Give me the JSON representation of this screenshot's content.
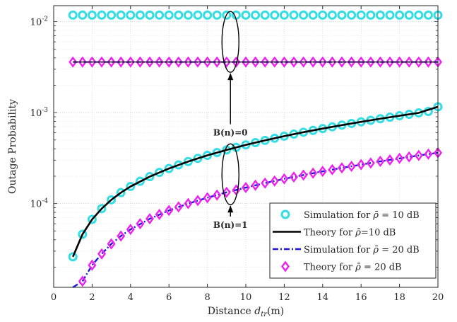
{
  "chart_data": {
    "type": "line",
    "xlabel": "Distance d_tr(m)",
    "xlabel_main": "Distance ",
    "xlabel_var": "d",
    "xlabel_sub": "tr",
    "xlabel_unit": "(m)",
    "ylabel": "Outage Probability",
    "xlim": [
      0,
      20
    ],
    "ylim": [
      1.2e-05,
      0.015
    ],
    "yscale": "log",
    "grid": true,
    "x_ticks": [
      0,
      2,
      4,
      6,
      8,
      10,
      12,
      14,
      16,
      18,
      20
    ],
    "y_ticks": [
      {
        "base": "10",
        "exp": "-4",
        "value": 0.0001
      },
      {
        "base": "10",
        "exp": "-3",
        "value": 0.001
      },
      {
        "base": "10",
        "exp": "-2",
        "value": 0.01
      }
    ],
    "legend_position": "bottom-right",
    "series": [
      {
        "name": "Simulation for ρ̄ = 10 dB",
        "label_main": "Simulation for ",
        "label_suffix": " = 10 dB",
        "style": "marker-circle",
        "color": "#33dde6",
        "x": [
          1,
          1.5,
          2,
          2.5,
          3,
          3.5,
          4,
          4.5,
          5,
          5.5,
          6,
          6.5,
          7,
          7.5,
          8,
          8.5,
          9,
          9.5,
          10,
          10.5,
          11,
          11.5,
          12,
          12.5,
          13,
          13.5,
          14,
          14.5,
          15,
          15.5,
          16,
          16.5,
          17,
          17.5,
          18,
          18.5,
          19,
          19.5,
          20
        ],
        "y": [
          2.6e-05,
          4.6e-05,
          6.7e-05,
          8.8e-05,
          0.00011,
          0.000132,
          0.000154,
          0.000176,
          0.000198,
          0.00022,
          0.000243,
          0.000266,
          0.00029,
          0.000314,
          0.000339,
          0.000364,
          0.000389,
          0.000415,
          0.000442,
          0.000468,
          0.000495,
          0.000523,
          0.000551,
          0.00058,
          0.000609,
          0.000638,
          0.000668,
          0.000698,
          0.000729,
          0.00076,
          0.000792,
          0.000824,
          0.000857,
          0.00089,
          0.000924,
          0.000958,
          0.000993,
          0.00103,
          0.00116
        ]
      },
      {
        "name": "Theory for ρ̄=10 dB",
        "label_main": "Theory for ",
        "label_suffix": "=10 dB",
        "style": "solid",
        "color": "#000000",
        "x": [
          1,
          1.5,
          2,
          2.5,
          3,
          3.5,
          4,
          5,
          6,
          7,
          8,
          9,
          10,
          11,
          12,
          13,
          14,
          15,
          16,
          17,
          18,
          19,
          20
        ],
        "y": [
          2.6e-05,
          4.6e-05,
          6.7e-05,
          8.8e-05,
          0.00011,
          0.000132,
          0.000154,
          0.000198,
          0.000243,
          0.00029,
          0.000339,
          0.000389,
          0.000442,
          0.000495,
          0.000551,
          0.000609,
          0.000668,
          0.000729,
          0.000792,
          0.000857,
          0.000924,
          0.000993,
          0.00116
        ]
      },
      {
        "name": "Simulation for ρ̄ = 20 dB",
        "label_main": "Simulation for ",
        "label_suffix": " = 20 dB",
        "style": "dashdot",
        "color": "#1a1adb",
        "x": [
          1,
          1.5,
          2,
          2.5,
          3,
          3.5,
          4,
          5,
          6,
          7,
          8,
          9,
          10,
          11,
          12,
          13,
          14,
          15,
          16,
          17,
          18,
          19,
          20
        ],
        "y": [
          1.2e-05,
          1.4e-05,
          2.1e-05,
          2.8e-05,
          3.6e-05,
          4.4e-05,
          5.2e-05,
          6.8e-05,
          8.4e-05,
          0.0001,
          0.000116,
          0.000133,
          0.00015,
          0.000168,
          0.000187,
          0.000206,
          0.000226,
          0.000247,
          0.000268,
          0.000291,
          0.000314,
          0.000338,
          0.000362
        ]
      },
      {
        "name": "Theory for ρ̄ = 20 dB",
        "label_main": "Theory for ",
        "label_suffix": " = 20 dB",
        "style": "marker-diamond",
        "color": "#ee22ee",
        "x": [
          1.5,
          2,
          2.5,
          3,
          3.5,
          4,
          4.5,
          5,
          5.5,
          6,
          6.5,
          7,
          7.5,
          8,
          8.5,
          9,
          9.5,
          10,
          10.5,
          11,
          11.5,
          12,
          12.5,
          13,
          13.5,
          14,
          14.5,
          15,
          15.5,
          16,
          16.5,
          17,
          17.5,
          18,
          18.5,
          19,
          19.5,
          20
        ],
        "y": [
          1.4e-05,
          2.1e-05,
          2.8e-05,
          3.6e-05,
          4.4e-05,
          5.2e-05,
          6e-05,
          6.8e-05,
          7.6e-05,
          8.4e-05,
          9.2e-05,
          0.0001,
          0.000108,
          0.000116,
          0.000124,
          0.000133,
          0.000141,
          0.00015,
          0.000159,
          0.000168,
          0.000177,
          0.000187,
          0.000196,
          0.000206,
          0.000216,
          0.000226,
          0.000236,
          0.000247,
          0.000257,
          0.000268,
          0.000279,
          0.000291,
          0.000302,
          0.000314,
          0.000326,
          0.000338,
          0.00035,
          0.000362
        ]
      },
      {
        "name": "Simulation for ρ̄ = 10 dB, B(n)=0",
        "style": "marker-circle-legendless",
        "color": "#33dde6",
        "constant": 0.0118
      },
      {
        "name": "Theory for ρ̄ = 20 dB, B(n)=0",
        "style": "marker-diamond-legendless",
        "color": "#ee22ee",
        "constant": 0.0036
      }
    ],
    "annotations": [
      {
        "text": "B(n)=0",
        "x": 9.2,
        "y": 0.00058,
        "ellipse_center": [
          9.2,
          0.006
        ]
      },
      {
        "text": "B(n)=1",
        "x": 9.2,
        "y": 5.6e-05,
        "ellipse_center": [
          9.2,
          0.00021
        ]
      }
    ]
  }
}
